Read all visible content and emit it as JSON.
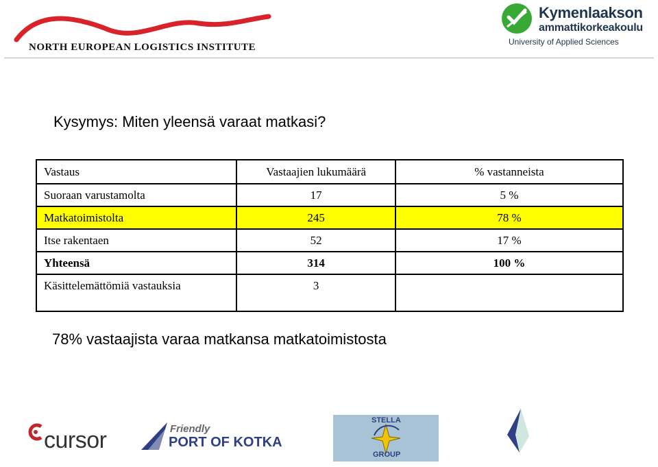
{
  "header": {
    "left_logo_text": "NORTH EUROPEAN LOGISTICS INSTITUTE",
    "right_logo": {
      "name_line1": "Kymenlaakson",
      "name_line2": "ammattikorkeakoulu",
      "subtitle": "University of Applied Sciences"
    }
  },
  "question": "Kysymys: Miten yleensä varaat matkasi?",
  "table": {
    "headers": [
      "Vastaus",
      "Vastaajien lukumäärä",
      "% vastanneista"
    ],
    "rows": [
      {
        "answer": "Suoraan varustamolta",
        "count": "17",
        "percent": "5 %"
      },
      {
        "answer": "Matkatoimistolta",
        "count": "245",
        "percent": "78 %"
      },
      {
        "answer": "Itse rakentaen",
        "count": "52",
        "percent": "17 %"
      },
      {
        "answer": "Yhteensä",
        "count": "314",
        "percent": "100 %"
      },
      {
        "answer": "Käsittelemättömiä vastauksia",
        "count": "3",
        "percent": ""
      }
    ]
  },
  "summary": "78% vastaajista varaa matkansa matkatoimistosta",
  "footer_logos": {
    "cursor": "cursor",
    "kotka_line1": "Friendly",
    "kotka_line2": "PORT OF KOTKA",
    "stella_top": "STELLA",
    "stella_bottom": "GROUP"
  },
  "colors": {
    "highlight": "#ffff00",
    "nel_red": "#d8232a",
    "kyamk_green": "#39a935",
    "kyamk_navy": "#1d3550"
  }
}
